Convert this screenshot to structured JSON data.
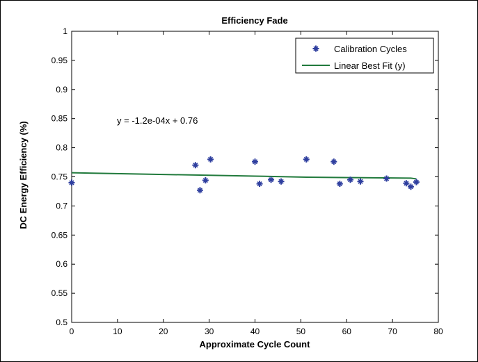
{
  "chart_data": {
    "type": "scatter",
    "title": "Efficiency Fade",
    "xlabel": "Approximate Cycle Count",
    "ylabel": "DC Energy Efficiency (%)",
    "xlim": [
      0,
      80
    ],
    "ylim": [
      0.5,
      1
    ],
    "xticks": [
      0,
      10,
      20,
      30,
      40,
      50,
      60,
      70,
      80
    ],
    "yticks": [
      0.5,
      0.55,
      0.6,
      0.65,
      0.7,
      0.75,
      0.8,
      0.85,
      0.9,
      0.95,
      1
    ],
    "grid": false,
    "legend_position": "top-right",
    "annotation": "y = -1.2e-04x + 0.76",
    "series": [
      {
        "name": "Calibration Cycles",
        "kind": "scatter",
        "marker": "star",
        "color": "#2f3f9f",
        "x": [
          0,
          27,
          28,
          29.2,
          30.3,
          40,
          41,
          43.5,
          45.7,
          51.2,
          57.2,
          58.5,
          60.8,
          63,
          68.7,
          73,
          74,
          75.2
        ],
        "y": [
          0.74,
          0.77,
          0.727,
          0.744,
          0.78,
          0.776,
          0.738,
          0.745,
          0.742,
          0.78,
          0.776,
          0.738,
          0.745,
          0.742,
          0.747,
          0.739,
          0.733,
          0.741
        ]
      },
      {
        "name": "Linear Best Fit (y)",
        "kind": "line",
        "color": "#217a3c",
        "x": [
          0,
          40,
          51.2,
          60.8,
          74,
          75.2
        ],
        "y": [
          0.757,
          0.7512,
          0.7494,
          0.7487,
          0.7477,
          0.7465
        ]
      }
    ]
  }
}
